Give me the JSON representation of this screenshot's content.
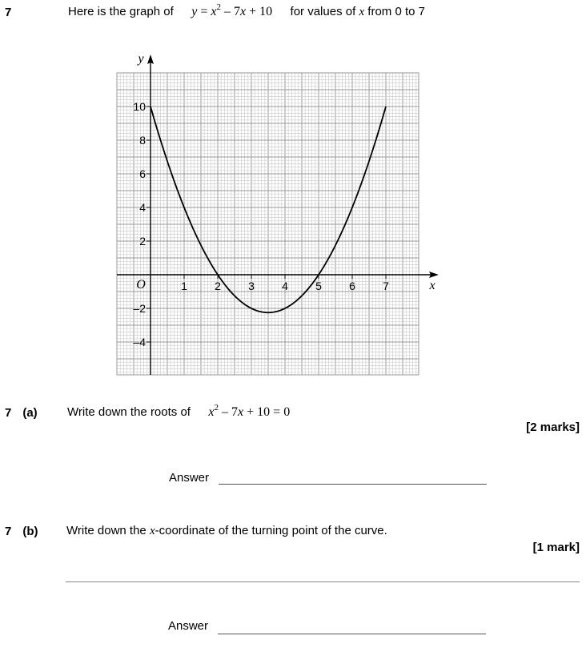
{
  "q7": {
    "number": "7",
    "intro_text": "Here is the graph of",
    "equation": {
      "y": "y",
      "eq": " = ",
      "x": "x",
      "pow": "2",
      "rest_a": " – 7",
      "x2": "x",
      "rest_b": " + 10"
    },
    "range_text_a": "for values of ",
    "range_var": "x",
    "range_text_b": " from 0 to 7"
  },
  "chart_data": {
    "type": "line",
    "function": "y = x^2 - 7x + 10",
    "xlabel": "x",
    "ylabel": "y",
    "origin_label": "O",
    "xlim": [
      -1,
      8
    ],
    "ylim": [
      -6,
      12
    ],
    "x_ticks": [
      "1",
      "2",
      "3",
      "4",
      "5",
      "6",
      "7"
    ],
    "y_ticks": [
      "10",
      "8",
      "6",
      "4",
      "2",
      "–2",
      "–4"
    ],
    "y_tick_values": [
      10,
      8,
      6,
      4,
      2,
      -2,
      -4
    ],
    "grid": true,
    "series": [
      {
        "x": [
          0,
          0.5,
          1,
          1.5,
          2,
          2.5,
          3,
          3.5,
          4,
          4.5,
          5,
          5.5,
          6,
          6.5,
          7
        ],
        "values": [
          10,
          6.75,
          4,
          1.75,
          0,
          -1.25,
          -2,
          -2.25,
          -2,
          -1.25,
          0,
          1.75,
          4,
          6.75,
          10
        ]
      }
    ]
  },
  "q7a": {
    "number": "7",
    "part": "(a)",
    "text": "Write down the roots of",
    "equation": {
      "x": "x",
      "pow": "2",
      "rest_a": " – 7",
      "x2": "x",
      "rest_b": " + 10 = 0"
    },
    "marks": "[2 marks]",
    "answer_label": "Answer"
  },
  "q7b": {
    "number": "7",
    "part": "(b)",
    "text_a": "Write down the ",
    "text_var": "x",
    "text_b": "-coordinate of the turning point of the curve.",
    "marks": "[1 mark]",
    "answer_label": "Answer"
  }
}
